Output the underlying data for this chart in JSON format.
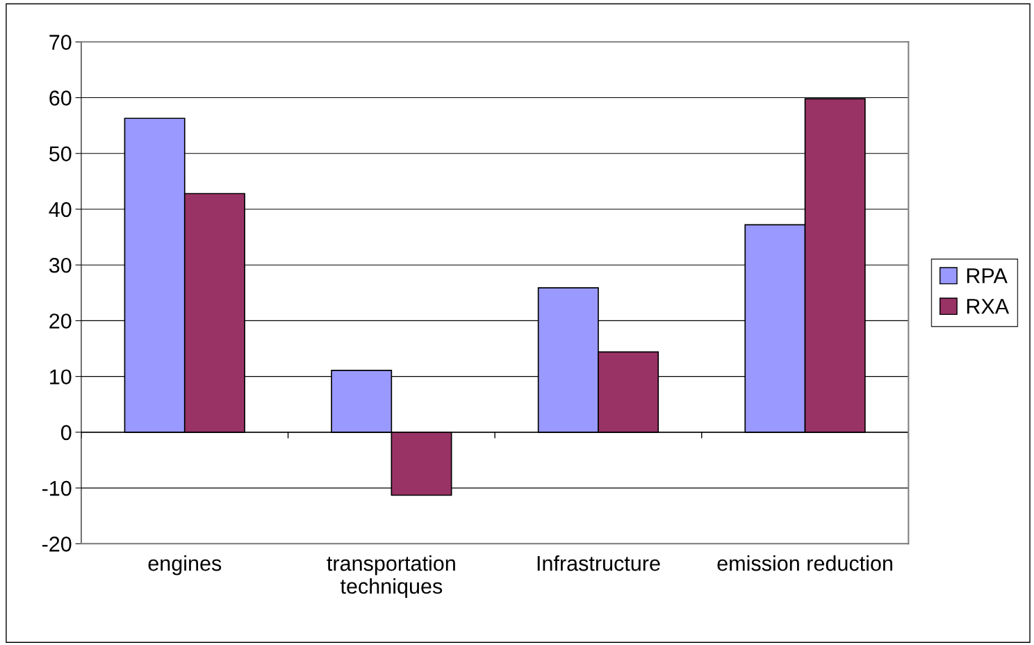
{
  "chart_data": {
    "type": "bar",
    "categories": [
      "engines",
      "transportation\ntechniques",
      "Infrastructure",
      "emission reduction"
    ],
    "series": [
      {
        "name": "RPA",
        "color": "#9999ff",
        "values": [
          56.3,
          11.1,
          25.9,
          37.2
        ]
      },
      {
        "name": "RXA",
        "color": "#993366",
        "values": [
          42.8,
          -11.3,
          14.4,
          59.8
        ]
      }
    ],
    "ylim": [
      -20,
      70
    ],
    "yticks": [
      -20,
      -10,
      0,
      10,
      20,
      30,
      40,
      50,
      60,
      70
    ],
    "grid": "y",
    "legend": "right"
  }
}
